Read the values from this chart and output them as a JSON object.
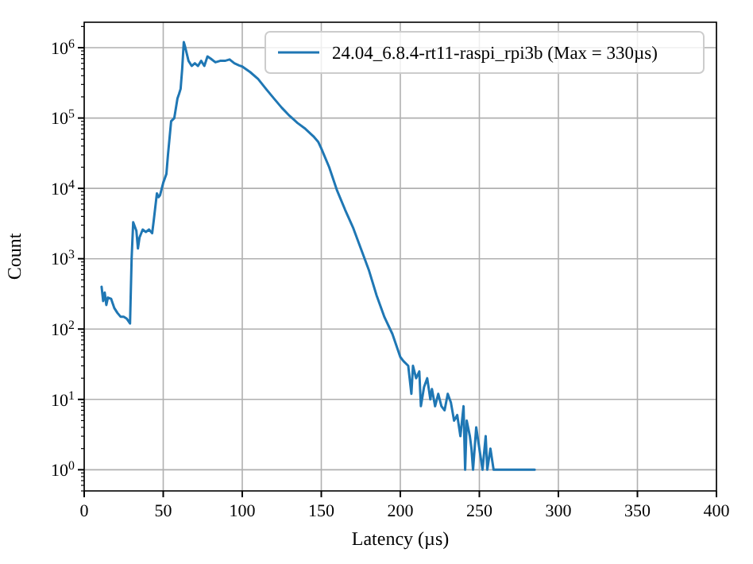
{
  "chart_data": {
    "type": "line",
    "xlabel": "Latency (µs)",
    "ylabel": "Count",
    "xlim": [
      0,
      400
    ],
    "xticks": [
      0,
      50,
      100,
      150,
      200,
      250,
      300,
      350,
      400
    ],
    "ylim": [
      0.5,
      2300000
    ],
    "yticks": [
      {
        "value": 1,
        "label": "10$^{0}$"
      },
      {
        "value": 10,
        "label": "10$^{1}$"
      },
      {
        "value": 100,
        "label": "10$^{2}$"
      },
      {
        "value": 1000,
        "label": "10$^{3}$"
      },
      {
        "value": 10000,
        "label": "10$^{4}$"
      },
      {
        "value": 100000,
        "label": "10$^{5}$"
      },
      {
        "value": 1000000,
        "label": "10$^{6}$"
      }
    ],
    "log": "y",
    "grid": true,
    "legend": "top right",
    "x": [
      11,
      12,
      13,
      14,
      15,
      17,
      19,
      21,
      23,
      25,
      27,
      29,
      30,
      31,
      33,
      34,
      35,
      37,
      39,
      41,
      43,
      44,
      46,
      47,
      48,
      50,
      52,
      53,
      55,
      57,
      59,
      60,
      61,
      62,
      63,
      64,
      66,
      68,
      70,
      72,
      74,
      76,
      78,
      80,
      83,
      86,
      89,
      92,
      95,
      98,
      100,
      105,
      110,
      115,
      120,
      125,
      130,
      135,
      140,
      145,
      148,
      150,
      155,
      160,
      165,
      170,
      175,
      180,
      185,
      190,
      195,
      200,
      202,
      205,
      207,
      208,
      210,
      212,
      213,
      215,
      217,
      219,
      220,
      222,
      224,
      226,
      228,
      230,
      232,
      234,
      236,
      238,
      240,
      241,
      242,
      244,
      245,
      246,
      248,
      250,
      252,
      254,
      255,
      257,
      259,
      261,
      263,
      265,
      267,
      269,
      271,
      285
    ],
    "series": [
      {
        "name": "24.04_6.8.4-rt11-raspi_rpi3b (Max = 330µs)",
        "color": "#1f77b4",
        "values": [
          400,
          250,
          330,
          220,
          280,
          270,
          200,
          170,
          150,
          150,
          140,
          120,
          1000,
          3300,
          2500,
          1400,
          2000,
          2600,
          2400,
          2600,
          2300,
          3500,
          8500,
          7500,
          8000,
          12000,
          16000,
          30000,
          90000,
          100000,
          190000,
          220000,
          260000,
          500000,
          1200000,
          1000000,
          650000,
          550000,
          600000,
          550000,
          650000,
          550000,
          750000,
          700000,
          620000,
          650000,
          650000,
          680000,
          600000,
          560000,
          540000,
          450000,
          360000,
          260000,
          190000,
          140000,
          107000,
          85000,
          70000,
          55000,
          46000,
          37000,
          20000,
          9300,
          5000,
          2800,
          1400,
          700,
          300,
          147,
          85,
          40,
          35,
          30,
          12,
          30,
          20,
          25,
          8,
          15,
          20,
          10,
          14,
          8,
          12,
          8,
          7,
          12,
          9,
          5,
          6,
          3,
          8,
          1,
          5,
          3,
          2,
          1,
          4,
          2,
          1,
          3,
          1,
          2,
          1,
          1,
          1,
          1,
          1,
          1,
          1,
          1
        ]
      }
    ]
  }
}
